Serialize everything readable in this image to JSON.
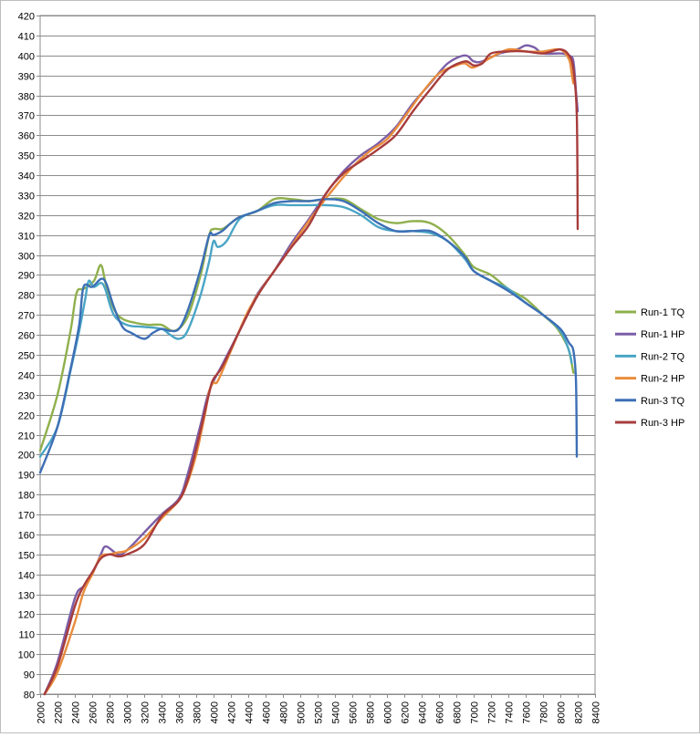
{
  "chart_data": {
    "type": "line",
    "title": "",
    "xlabel": "",
    "ylabel": "",
    "xlim": [
      2000,
      8400
    ],
    "ylim": [
      80,
      420
    ],
    "x_ticks": [
      2000,
      2200,
      2400,
      2600,
      2800,
      3000,
      3200,
      3400,
      3600,
      3800,
      4000,
      4200,
      4400,
      4600,
      4800,
      5000,
      5200,
      5400,
      5600,
      5800,
      6000,
      6200,
      6400,
      6600,
      6800,
      7000,
      7200,
      7400,
      7600,
      7800,
      8000,
      8200,
      8400
    ],
    "y_ticks": [
      80,
      90,
      100,
      110,
      120,
      130,
      140,
      150,
      160,
      170,
      180,
      190,
      200,
      210,
      220,
      230,
      240,
      250,
      260,
      270,
      280,
      290,
      300,
      310,
      320,
      330,
      340,
      350,
      360,
      370,
      380,
      390,
      400,
      410,
      420
    ],
    "grid": true,
    "legend_position": "right",
    "series": [
      {
        "name": "Run-1 TQ",
        "color": "#8fb04d",
        "points": [
          [
            2000,
            202
          ],
          [
            2200,
            230
          ],
          [
            2350,
            262
          ],
          [
            2420,
            281
          ],
          [
            2500,
            283
          ],
          [
            2620,
            287
          ],
          [
            2700,
            295
          ],
          [
            2760,
            285
          ],
          [
            2850,
            273
          ],
          [
            2950,
            268
          ],
          [
            3100,
            266
          ],
          [
            3250,
            265
          ],
          [
            3400,
            265
          ],
          [
            3550,
            262
          ],
          [
            3700,
            269
          ],
          [
            3850,
            290
          ],
          [
            3950,
            310
          ],
          [
            4000,
            313
          ],
          [
            4100,
            313
          ],
          [
            4200,
            316
          ],
          [
            4300,
            319
          ],
          [
            4500,
            322
          ],
          [
            4700,
            328
          ],
          [
            4900,
            328
          ],
          [
            5100,
            327
          ],
          [
            5300,
            328
          ],
          [
            5500,
            328
          ],
          [
            5700,
            323
          ],
          [
            5900,
            318
          ],
          [
            6100,
            316
          ],
          [
            6300,
            317
          ],
          [
            6500,
            316
          ],
          [
            6700,
            310
          ],
          [
            6900,
            300
          ],
          [
            7000,
            294
          ],
          [
            7200,
            290
          ],
          [
            7400,
            283
          ],
          [
            7600,
            278
          ],
          [
            7800,
            270
          ],
          [
            7950,
            264
          ],
          [
            8050,
            257
          ],
          [
            8100,
            252
          ],
          [
            8150,
            241
          ]
        ]
      },
      {
        "name": "Run-1 HP",
        "color": "#7b5ea7",
        "points": [
          [
            2050,
            80
          ],
          [
            2200,
            96
          ],
          [
            2400,
            128
          ],
          [
            2500,
            134
          ],
          [
            2600,
            140
          ],
          [
            2700,
            150
          ],
          [
            2760,
            154
          ],
          [
            2900,
            150
          ],
          [
            3000,
            152
          ],
          [
            3200,
            161
          ],
          [
            3400,
            170
          ],
          [
            3600,
            178
          ],
          [
            3700,
            190
          ],
          [
            3850,
            215
          ],
          [
            3950,
            232
          ],
          [
            4100,
            245
          ],
          [
            4300,
            262
          ],
          [
            4500,
            280
          ],
          [
            4700,
            292
          ],
          [
            4900,
            306
          ],
          [
            5100,
            318
          ],
          [
            5300,
            331
          ],
          [
            5500,
            342
          ],
          [
            5700,
            350
          ],
          [
            5900,
            356
          ],
          [
            6100,
            364
          ],
          [
            6300,
            376
          ],
          [
            6500,
            386
          ],
          [
            6700,
            396
          ],
          [
            6900,
            400
          ],
          [
            7000,
            397
          ],
          [
            7100,
            397
          ],
          [
            7300,
            401
          ],
          [
            7500,
            403
          ],
          [
            7600,
            405
          ],
          [
            7700,
            404
          ],
          [
            7800,
            401
          ],
          [
            8000,
            401
          ],
          [
            8100,
            400
          ],
          [
            8150,
            397
          ],
          [
            8180,
            382
          ],
          [
            8200,
            372
          ]
        ]
      },
      {
        "name": "Run-2 TQ",
        "color": "#4aa5c6",
        "points": [
          [
            2000,
            199
          ],
          [
            2200,
            214
          ],
          [
            2350,
            242
          ],
          [
            2450,
            262
          ],
          [
            2520,
            278
          ],
          [
            2560,
            287
          ],
          [
            2620,
            284
          ],
          [
            2700,
            286
          ],
          [
            2750,
            283
          ],
          [
            2850,
            270
          ],
          [
            3000,
            265
          ],
          [
            3200,
            264
          ],
          [
            3400,
            263
          ],
          [
            3500,
            260
          ],
          [
            3600,
            258
          ],
          [
            3700,
            262
          ],
          [
            3850,
            280
          ],
          [
            3950,
            297
          ],
          [
            4000,
            307
          ],
          [
            4050,
            304
          ],
          [
            4150,
            307
          ],
          [
            4300,
            318
          ],
          [
            4500,
            322
          ],
          [
            4700,
            325
          ],
          [
            4900,
            325
          ],
          [
            5100,
            325
          ],
          [
            5300,
            325
          ],
          [
            5500,
            324
          ],
          [
            5700,
            320
          ],
          [
            5900,
            314
          ],
          [
            6100,
            312
          ],
          [
            6300,
            312
          ],
          [
            6500,
            311
          ],
          [
            6700,
            307
          ],
          [
            6900,
            298
          ],
          [
            7000,
            292
          ],
          [
            7200,
            287
          ],
          [
            7400,
            283
          ],
          [
            7600,
            276
          ],
          [
            7800,
            270
          ],
          [
            8000,
            262
          ],
          [
            8100,
            252
          ],
          [
            8130,
            246
          ]
        ]
      },
      {
        "name": "Run-2 HP",
        "color": "#e98c3b",
        "points": [
          [
            2050,
            80
          ],
          [
            2200,
            91
          ],
          [
            2400,
            116
          ],
          [
            2500,
            131
          ],
          [
            2600,
            140
          ],
          [
            2700,
            149
          ],
          [
            2800,
            150
          ],
          [
            2900,
            151
          ],
          [
            3000,
            152
          ],
          [
            3200,
            158
          ],
          [
            3400,
            168
          ],
          [
            3600,
            177
          ],
          [
            3700,
            186
          ],
          [
            3800,
            200
          ],
          [
            3900,
            220
          ],
          [
            3950,
            232
          ],
          [
            4000,
            236
          ],
          [
            4050,
            237
          ],
          [
            4200,
            252
          ],
          [
            4400,
            272
          ],
          [
            4600,
            286
          ],
          [
            4800,
            298
          ],
          [
            5000,
            311
          ],
          [
            5200,
            323
          ],
          [
            5400,
            334
          ],
          [
            5600,
            344
          ],
          [
            5800,
            352
          ],
          [
            6000,
            358
          ],
          [
            6200,
            369
          ],
          [
            6400,
            381
          ],
          [
            6600,
            391
          ],
          [
            6800,
            395
          ],
          [
            6900,
            396
          ],
          [
            7000,
            394
          ],
          [
            7200,
            399
          ],
          [
            7400,
            403
          ],
          [
            7600,
            402
          ],
          [
            7800,
            402
          ],
          [
            8000,
            403
          ],
          [
            8100,
            398
          ],
          [
            8130,
            391
          ],
          [
            8150,
            386
          ]
        ]
      },
      {
        "name": "Run-3 TQ",
        "color": "#3d6fb5",
        "points": [
          [
            2000,
            191
          ],
          [
            2200,
            214
          ],
          [
            2350,
            243
          ],
          [
            2450,
            265
          ],
          [
            2500,
            284
          ],
          [
            2600,
            284
          ],
          [
            2700,
            288
          ],
          [
            2760,
            286
          ],
          [
            2850,
            274
          ],
          [
            2950,
            264
          ],
          [
            3050,
            261
          ],
          [
            3200,
            258
          ],
          [
            3300,
            261
          ],
          [
            3400,
            263
          ],
          [
            3500,
            262
          ],
          [
            3600,
            263
          ],
          [
            3700,
            272
          ],
          [
            3850,
            293
          ],
          [
            3950,
            310
          ],
          [
            4000,
            310
          ],
          [
            4100,
            312
          ],
          [
            4200,
            316
          ],
          [
            4300,
            319
          ],
          [
            4500,
            322
          ],
          [
            4700,
            326
          ],
          [
            4900,
            327
          ],
          [
            5100,
            327
          ],
          [
            5300,
            328
          ],
          [
            5500,
            327
          ],
          [
            5700,
            322
          ],
          [
            5900,
            316
          ],
          [
            6100,
            312
          ],
          [
            6300,
            312
          ],
          [
            6500,
            312
          ],
          [
            6700,
            307
          ],
          [
            6900,
            299
          ],
          [
            7000,
            292
          ],
          [
            7200,
            287
          ],
          [
            7400,
            282
          ],
          [
            7600,
            276
          ],
          [
            7800,
            270
          ],
          [
            8000,
            263
          ],
          [
            8100,
            256
          ],
          [
            8150,
            252
          ],
          [
            8180,
            237
          ],
          [
            8190,
            199
          ]
        ]
      },
      {
        "name": "Run-3 HP",
        "color": "#a83c3c",
        "points": [
          [
            2050,
            80
          ],
          [
            2200,
            94
          ],
          [
            2400,
            124
          ],
          [
            2500,
            134
          ],
          [
            2600,
            141
          ],
          [
            2700,
            148
          ],
          [
            2800,
            150
          ],
          [
            2900,
            149
          ],
          [
            3000,
            150
          ],
          [
            3200,
            155
          ],
          [
            3400,
            169
          ],
          [
            3600,
            177
          ],
          [
            3700,
            187
          ],
          [
            3800,
            203
          ],
          [
            3950,
            231
          ],
          [
            4000,
            238
          ],
          [
            4100,
            244
          ],
          [
            4300,
            262
          ],
          [
            4500,
            279
          ],
          [
            4700,
            292
          ],
          [
            4900,
            304
          ],
          [
            5100,
            315
          ],
          [
            5300,
            331
          ],
          [
            5500,
            341
          ],
          [
            5700,
            347
          ],
          [
            5900,
            353
          ],
          [
            6100,
            360
          ],
          [
            6300,
            372
          ],
          [
            6500,
            383
          ],
          [
            6700,
            393
          ],
          [
            6900,
            397
          ],
          [
            7000,
            395
          ],
          [
            7100,
            396
          ],
          [
            7200,
            401
          ],
          [
            7400,
            402
          ],
          [
            7600,
            402
          ],
          [
            7800,
            401
          ],
          [
            8000,
            403
          ],
          [
            8100,
            400
          ],
          [
            8150,
            393
          ],
          [
            8190,
            370
          ],
          [
            8200,
            313
          ]
        ]
      }
    ]
  }
}
